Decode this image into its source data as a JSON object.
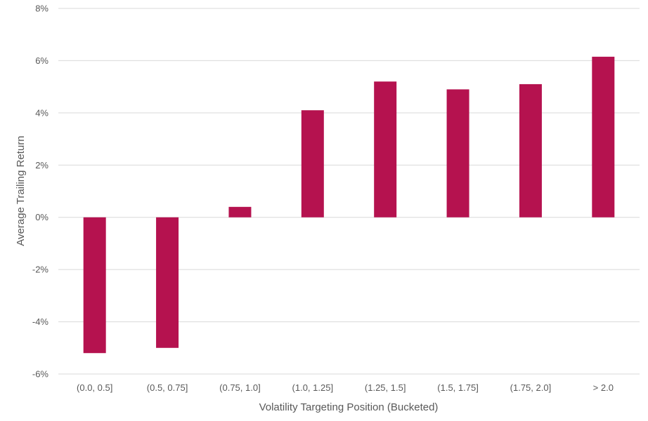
{
  "chart_data": {
    "type": "bar",
    "title": "",
    "xlabel": "Volatility Targeting Position (Bucketed)",
    "ylabel": "Average Trailing Return",
    "categories": [
      "(0.0, 0.5]",
      "(0.5, 0.75]",
      "(0.75, 1.0]",
      "(1.0, 1.25]",
      "(1.25, 1.5]",
      "(1.5, 1.75]",
      "(1.75, 2.0]",
      "> 2.0"
    ],
    "values": [
      -5.2,
      -5.0,
      0.4,
      4.1,
      5.2,
      4.9,
      5.1,
      6.15
    ],
    "unit": "%",
    "ylim": [
      -6,
      8
    ],
    "yticks": [
      8,
      6,
      4,
      2,
      0,
      -2,
      -4,
      -6
    ],
    "ytick_labels": [
      "8%",
      "6%",
      "4%",
      "2%",
      "0%",
      "-2%",
      "-4%",
      "-6%"
    ],
    "grid": true,
    "legend": "none",
    "bar_color": "#b5124f"
  }
}
